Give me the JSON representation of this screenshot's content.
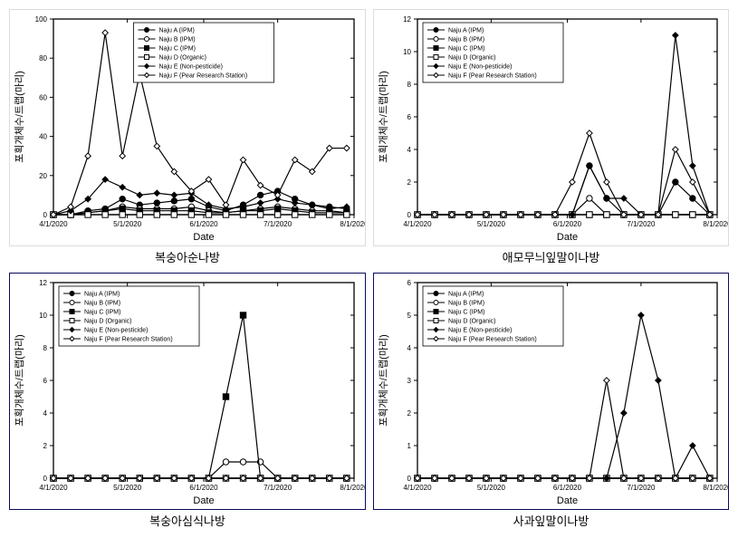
{
  "global": {
    "xlabel": "Date",
    "ylabel": "포획개체수/트랩(마리)",
    "xlim": [
      "2020-04-01",
      "2020-08-01"
    ],
    "xticks": [
      "4/1/2020",
      "5/1/2020",
      "6/1/2020",
      "7/1/2020",
      "8/1/2020"
    ],
    "xdates": [
      "2020-04-01",
      "2020-05-01",
      "2020-06-01",
      "2020-07-01",
      "2020-08-01"
    ],
    "label_fontsize": 11,
    "tick_fontsize": 8,
    "background_color": "#ffffff",
    "axis_color": "#000000",
    "grid": false,
    "line_width": 1.2,
    "marker_size": 3.2,
    "legend_fontsize": 7,
    "legend_border": "#000000",
    "sample_dates": [
      "2020-04-01",
      "2020-04-08",
      "2020-04-15",
      "2020-04-22",
      "2020-04-29",
      "2020-05-06",
      "2020-05-13",
      "2020-05-20",
      "2020-05-27",
      "2020-06-03",
      "2020-06-10",
      "2020-06-17",
      "2020-06-24",
      "2020-07-01",
      "2020-07-08",
      "2020-07-15",
      "2020-07-22",
      "2020-07-29"
    ]
  },
  "legend_items": [
    {
      "name": "Naju A (IPM)",
      "marker": "circle",
      "fill": "#000000",
      "stroke": "#000000",
      "line": "#000000"
    },
    {
      "name": "Naju B (IPM)",
      "marker": "circle",
      "fill": "#ffffff",
      "stroke": "#000000",
      "line": "#000000"
    },
    {
      "name": "Naju C (IPM)",
      "marker": "square",
      "fill": "#000000",
      "stroke": "#000000",
      "line": "#000000"
    },
    {
      "name": "Naju D (Organic)",
      "marker": "square",
      "fill": "#ffffff",
      "stroke": "#000000",
      "line": "#000000"
    },
    {
      "name": "Naju E (Non-pesticide)",
      "marker": "diamond",
      "fill": "#000000",
      "stroke": "#000000",
      "line": "#000000"
    },
    {
      "name": "Naju F (Pear Research Station)",
      "marker": "diamond",
      "fill": "#ffffff",
      "stroke": "#000000",
      "line": "#000000"
    }
  ],
  "charts": [
    {
      "id": "chart-tl",
      "caption": "복숭아순나방",
      "border": "light",
      "ylim": [
        0,
        100
      ],
      "ytick_step": 20,
      "legend_pos": "top-center",
      "series": [
        {
          "key": "A",
          "values": [
            0,
            0,
            2,
            3,
            8,
            5,
            6,
            7,
            8,
            4,
            2,
            5,
            10,
            12,
            8,
            5,
            4,
            3
          ]
        },
        {
          "key": "B",
          "values": [
            0,
            0,
            1,
            2,
            4,
            3,
            3,
            3,
            4,
            2,
            1,
            2,
            3,
            4,
            3,
            2,
            2,
            1
          ]
        },
        {
          "key": "C",
          "values": [
            0,
            0,
            1,
            2,
            3,
            2,
            2,
            2,
            2,
            1,
            1,
            2,
            2,
            3,
            2,
            1,
            1,
            1
          ]
        },
        {
          "key": "D",
          "values": [
            0,
            0,
            0,
            0,
            0,
            0,
            0,
            0,
            0,
            0,
            0,
            0,
            0,
            0,
            0,
            0,
            0,
            0
          ]
        },
        {
          "key": "E",
          "values": [
            0,
            2,
            8,
            18,
            14,
            10,
            11,
            10,
            11,
            5,
            3,
            4,
            6,
            8,
            6,
            5,
            3,
            4
          ]
        },
        {
          "key": "F",
          "values": [
            0,
            4,
            30,
            93,
            30,
            72,
            35,
            22,
            12,
            18,
            5,
            28,
            15,
            10,
            28,
            22,
            34,
            34
          ]
        }
      ]
    },
    {
      "id": "chart-tr",
      "caption": "애모무늬잎말이나방",
      "border": "light",
      "ylim": [
        0,
        12
      ],
      "ytick_step": 2,
      "legend_pos": "top-left",
      "series": [
        {
          "key": "A",
          "values": [
            0,
            0,
            0,
            0,
            0,
            0,
            0,
            0,
            0,
            0,
            3,
            1,
            0,
            0,
            0,
            2,
            1,
            0
          ]
        },
        {
          "key": "B",
          "values": [
            0,
            0,
            0,
            0,
            0,
            0,
            0,
            0,
            0,
            0,
            1,
            0,
            0,
            0,
            0,
            0,
            0,
            0
          ]
        },
        {
          "key": "C",
          "values": [
            0,
            0,
            0,
            0,
            0,
            0,
            0,
            0,
            0,
            0,
            0,
            0,
            0,
            0,
            0,
            0,
            0,
            0
          ]
        },
        {
          "key": "D",
          "values": [
            0,
            0,
            0,
            0,
            0,
            0,
            0,
            0,
            0,
            0,
            0,
            0,
            0,
            0,
            0,
            0,
            0,
            0
          ]
        },
        {
          "key": "E",
          "values": [
            0,
            0,
            0,
            0,
            0,
            0,
            0,
            0,
            0,
            0,
            3,
            1,
            1,
            0,
            0,
            11,
            3,
            0
          ]
        },
        {
          "key": "F",
          "values": [
            0,
            0,
            0,
            0,
            0,
            0,
            0,
            0,
            0,
            2,
            5,
            2,
            0,
            0,
            0,
            4,
            2,
            0
          ]
        }
      ]
    },
    {
      "id": "chart-bl",
      "caption": "복숭아심식나방",
      "border": "dark",
      "ylim": [
        0,
        12
      ],
      "ytick_step": 2,
      "legend_pos": "top-left",
      "series": [
        {
          "key": "A",
          "values": [
            0,
            0,
            0,
            0,
            0,
            0,
            0,
            0,
            0,
            0,
            0,
            0,
            0,
            0,
            0,
            0,
            0,
            0
          ]
        },
        {
          "key": "B",
          "values": [
            0,
            0,
            0,
            0,
            0,
            0,
            0,
            0,
            0,
            0,
            1,
            1,
            1,
            0,
            0,
            0,
            0,
            0
          ]
        },
        {
          "key": "C",
          "values": [
            0,
            0,
            0,
            0,
            0,
            0,
            0,
            0,
            0,
            0,
            5,
            10,
            0,
            0,
            0,
            0,
            0,
            0
          ]
        },
        {
          "key": "D",
          "values": [
            0,
            0,
            0,
            0,
            0,
            0,
            0,
            0,
            0,
            0,
            0,
            0,
            0,
            0,
            0,
            0,
            0,
            0
          ]
        },
        {
          "key": "E",
          "values": [
            0,
            0,
            0,
            0,
            0,
            0,
            0,
            0,
            0,
            0,
            0,
            0,
            0,
            0,
            0,
            0,
            0,
            0
          ]
        },
        {
          "key": "F",
          "values": [
            0,
            0,
            0,
            0,
            0,
            0,
            0,
            0,
            0,
            0,
            0,
            0,
            0,
            0,
            0,
            0,
            0,
            0
          ]
        }
      ]
    },
    {
      "id": "chart-br",
      "caption": "사과잎말이나방",
      "border": "dark",
      "ylim": [
        0,
        6
      ],
      "ytick_step": 1,
      "legend_pos": "top-left",
      "series": [
        {
          "key": "A",
          "values": [
            0,
            0,
            0,
            0,
            0,
            0,
            0,
            0,
            0,
            0,
            0,
            0,
            0,
            0,
            0,
            0,
            0,
            0
          ]
        },
        {
          "key": "B",
          "values": [
            0,
            0,
            0,
            0,
            0,
            0,
            0,
            0,
            0,
            0,
            0,
            0,
            0,
            0,
            0,
            0,
            0,
            0
          ]
        },
        {
          "key": "C",
          "values": [
            0,
            0,
            0,
            0,
            0,
            0,
            0,
            0,
            0,
            0,
            0,
            0,
            0,
            0,
            0,
            0,
            0,
            0
          ]
        },
        {
          "key": "D",
          "values": [
            0,
            0,
            0,
            0,
            0,
            0,
            0,
            0,
            0,
            0,
            0,
            0,
            0,
            0,
            0,
            0,
            0,
            0
          ]
        },
        {
          "key": "E",
          "values": [
            0,
            0,
            0,
            0,
            0,
            0,
            0,
            0,
            0,
            0,
            0,
            0,
            2,
            5,
            3,
            0,
            1,
            0
          ]
        },
        {
          "key": "F",
          "values": [
            0,
            0,
            0,
            0,
            0,
            0,
            0,
            0,
            0,
            0,
            0,
            3,
            0,
            0,
            0,
            0,
            0,
            0
          ]
        }
      ]
    }
  ]
}
